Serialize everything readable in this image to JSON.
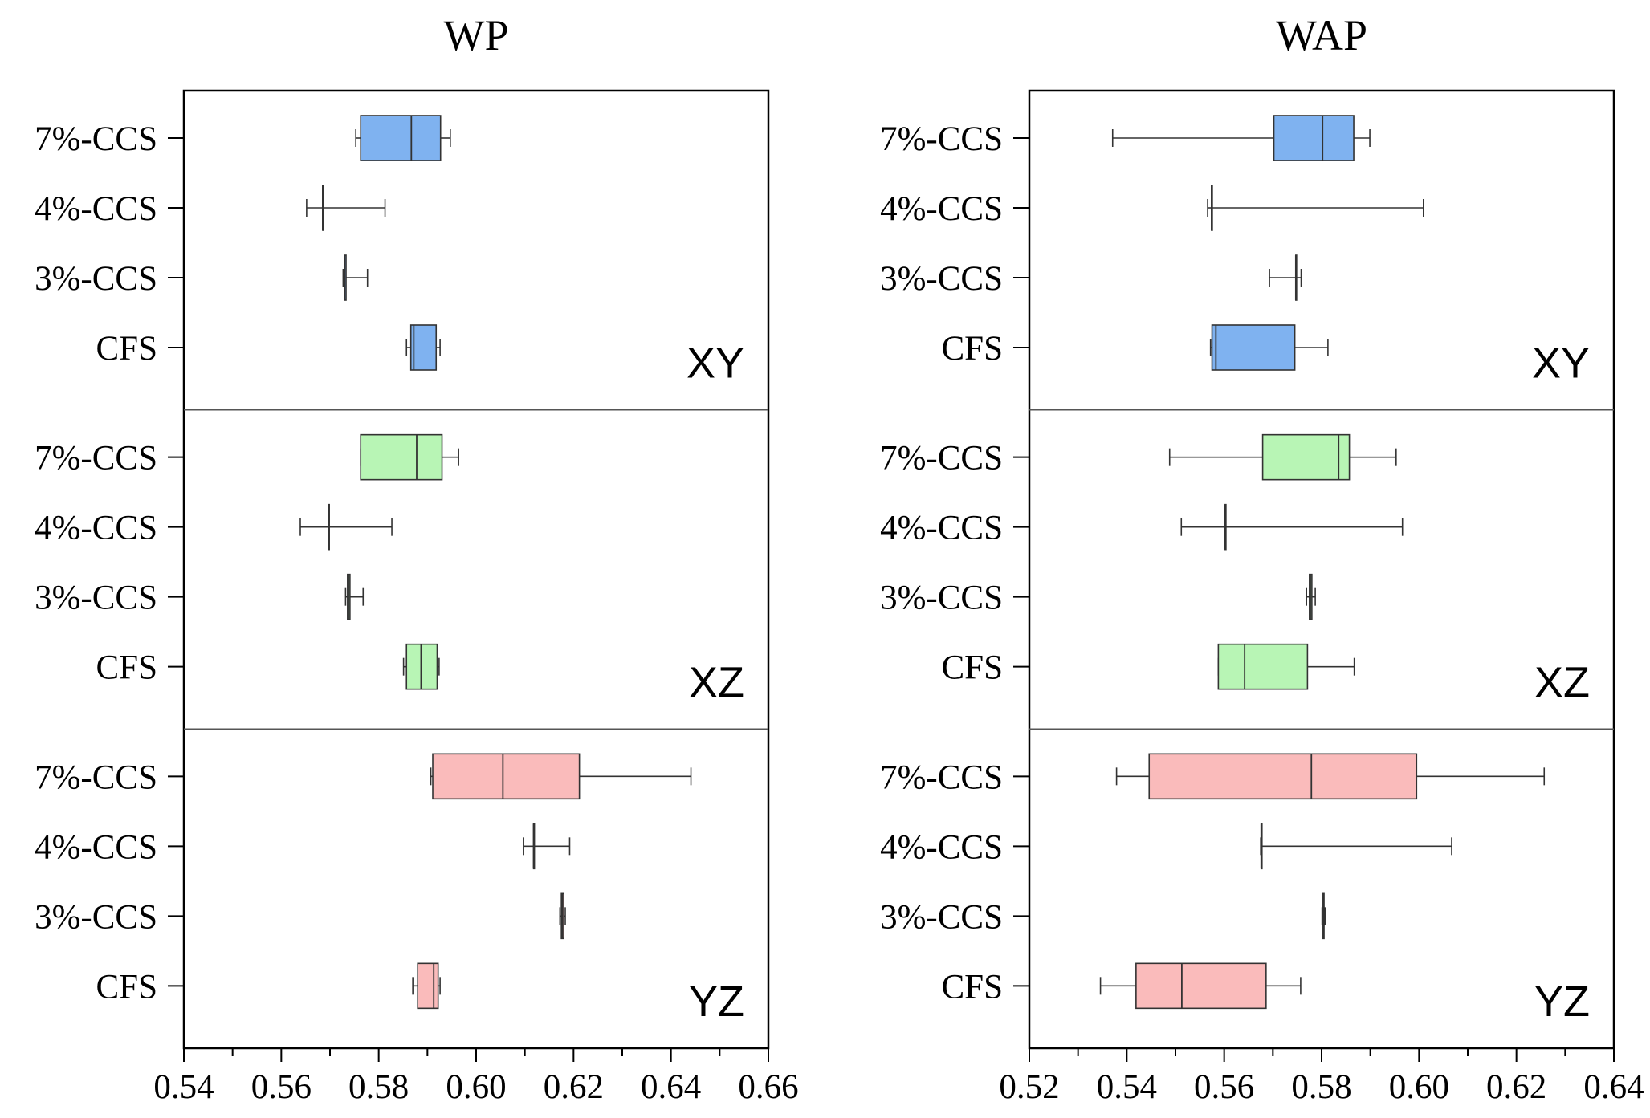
{
  "chart_data": [
    {
      "type": "box",
      "title": "WP",
      "orientation": "horizontal",
      "xlim": [
        0.54,
        0.66
      ],
      "xticks": [
        "0.54",
        "0.56",
        "0.58",
        "0.60",
        "0.62",
        "0.64",
        "0.66"
      ],
      "categories": [
        "7%-CCS",
        "4%-CCS",
        "3%-CCS",
        "CFS"
      ],
      "panels": [
        {
          "label": "XY",
          "color": "#7fb2f0",
          "boxes": [
            {
              "category": "7%-CCS",
              "min": 0.5753,
              "q1": 0.5763,
              "median": 0.5867,
              "q3": 0.5927,
              "max": 0.5947
            },
            {
              "category": "4%-CCS",
              "min": 0.5652,
              "q1": 0.5685,
              "median": 0.5685,
              "q3": 0.5685,
              "max": 0.5813
            },
            {
              "category": "3%-CCS",
              "min": 0.5727,
              "q1": 0.573,
              "median": 0.573,
              "q3": 0.5733,
              "max": 0.5777
            },
            {
              "category": "CFS",
              "min": 0.5857,
              "q1": 0.5866,
              "median": 0.5872,
              "q3": 0.5918,
              "max": 0.5926
            }
          ]
        },
        {
          "label": "XZ",
          "color": "#b8f5b5",
          "boxes": [
            {
              "category": "7%-CCS",
              "min": 0.5763,
              "q1": 0.5763,
              "median": 0.5878,
              "q3": 0.593,
              "max": 0.5964
            },
            {
              "category": "4%-CCS",
              "min": 0.5639,
              "q1": 0.5697,
              "median": 0.5697,
              "q3": 0.5697,
              "max": 0.5827
            },
            {
              "category": "3%-CCS",
              "min": 0.5732,
              "q1": 0.5736,
              "median": 0.5738,
              "q3": 0.5741,
              "max": 0.5768
            },
            {
              "category": "CFS",
              "min": 0.5851,
              "q1": 0.5857,
              "median": 0.5887,
              "q3": 0.592,
              "max": 0.5924
            }
          ]
        },
        {
          "label": "YZ",
          "color": "#fabbbb",
          "boxes": [
            {
              "category": "7%-CCS",
              "min": 0.5907,
              "q1": 0.5911,
              "median": 0.6055,
              "q3": 0.6212,
              "max": 0.6441
            },
            {
              "category": "4%-CCS",
              "min": 0.6097,
              "q1": 0.6118,
              "median": 0.6118,
              "q3": 0.6118,
              "max": 0.6192
            },
            {
              "category": "3%-CCS",
              "min": 0.6172,
              "q1": 0.6175,
              "median": 0.6177,
              "q3": 0.618,
              "max": 0.6183
            },
            {
              "category": "CFS",
              "min": 0.587,
              "q1": 0.588,
              "median": 0.5913,
              "q3": 0.5922,
              "max": 0.5926
            }
          ]
        }
      ]
    },
    {
      "type": "box",
      "title": "WAP",
      "orientation": "horizontal",
      "xlim": [
        0.52,
        0.64
      ],
      "xticks": [
        "0.52",
        "0.54",
        "0.56",
        "0.58",
        "0.60",
        "0.62",
        "0.64"
      ],
      "categories": [
        "7%-CCS",
        "4%-CCS",
        "3%-CCS",
        "CFS"
      ],
      "panels": [
        {
          "label": "XY",
          "color": "#7fb2f0",
          "boxes": [
            {
              "category": "7%-CCS",
              "min": 0.5371,
              "q1": 0.5702,
              "median": 0.5802,
              "q3": 0.5866,
              "max": 0.5899
            },
            {
              "category": "4%-CCS",
              "min": 0.5566,
              "q1": 0.5574,
              "median": 0.5574,
              "q3": 0.5574,
              "max": 0.6009
            },
            {
              "category": "3%-CCS",
              "min": 0.5693,
              "q1": 0.5747,
              "median": 0.5747,
              "q3": 0.5747,
              "max": 0.5758
            },
            {
              "category": "CFS",
              "min": 0.5572,
              "q1": 0.5575,
              "median": 0.5583,
              "q3": 0.5745,
              "max": 0.5813
            }
          ]
        },
        {
          "label": "XZ",
          "color": "#b8f5b5",
          "boxes": [
            {
              "category": "7%-CCS",
              "min": 0.5488,
              "q1": 0.5679,
              "median": 0.5835,
              "q3": 0.5857,
              "max": 0.5953
            },
            {
              "category": "4%-CCS",
              "min": 0.5512,
              "q1": 0.5602,
              "median": 0.5602,
              "q3": 0.5602,
              "max": 0.5966
            },
            {
              "category": "3%-CCS",
              "min": 0.5769,
              "q1": 0.5775,
              "median": 0.5777,
              "q3": 0.578,
              "max": 0.5787
            },
            {
              "category": "CFS",
              "min": 0.5588,
              "q1": 0.5588,
              "median": 0.5642,
              "q3": 0.5771,
              "max": 0.5867
            }
          ]
        },
        {
          "label": "YZ",
          "color": "#fabbbb",
          "boxes": [
            {
              "category": "7%-CCS",
              "min": 0.5379,
              "q1": 0.5446,
              "median": 0.5779,
              "q3": 0.5995,
              "max": 0.6257
            },
            {
              "category": "4%-CCS",
              "min": 0.5675,
              "q1": 0.5676,
              "median": 0.5676,
              "q3": 0.5676,
              "max": 0.6067
            },
            {
              "category": "3%-CCS",
              "min": 0.5801,
              "q1": 0.5803,
              "median": 0.5804,
              "q3": 0.5805,
              "max": 0.5807
            },
            {
              "category": "CFS",
              "min": 0.5346,
              "q1": 0.5419,
              "median": 0.5513,
              "q3": 0.5686,
              "max": 0.5757
            }
          ]
        }
      ]
    }
  ]
}
